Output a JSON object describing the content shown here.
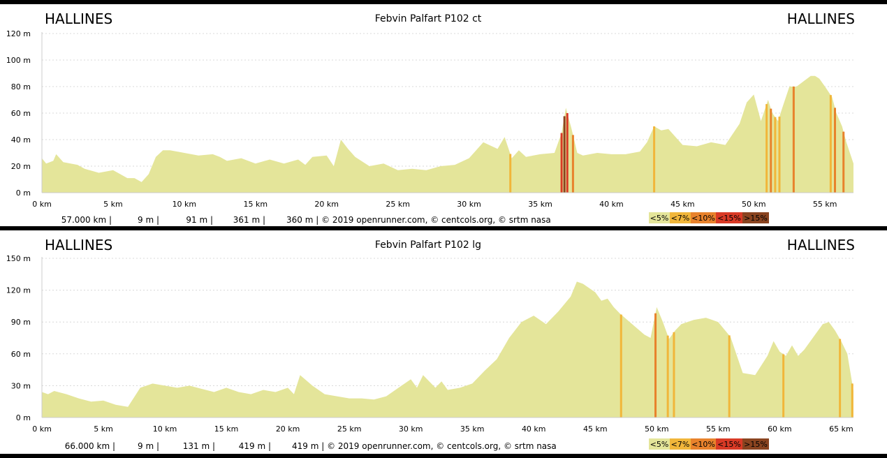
{
  "colors": {
    "fill": "#e4e59a",
    "grid": "#d8d8d8",
    "slope": [
      "#e4e59a",
      "#f1b63a",
      "#e8822c",
      "#d93a26",
      "#8a4420"
    ]
  },
  "chart_data": [
    {
      "type": "area",
      "title": "Febvin Palfart P102 ct",
      "start_label": "HALLINES",
      "end_label": "HALLINES",
      "xlim": [
        0,
        57
      ],
      "ylim": [
        0,
        120
      ],
      "x_ticks": [
        0,
        5,
        10,
        15,
        20,
        25,
        30,
        35,
        40,
        45,
        50,
        55
      ],
      "x_tick_labels": [
        "0 km",
        "5 km",
        "10 km",
        "15 km",
        "20 km",
        "25 km",
        "30 km",
        "35 km",
        "40 km",
        "45 km",
        "50 km",
        "55 km"
      ],
      "y_ticks": [
        0,
        20,
        40,
        60,
        80,
        100,
        120
      ],
      "y_tick_labels": [
        "0 m",
        "20 m",
        "40 m",
        "60 m",
        "80 m",
        "100 m",
        "120 m"
      ],
      "grid": true,
      "x": [
        0,
        0.3,
        0.8,
        1.0,
        1.5,
        2.5,
        3.0,
        4.0,
        5.0,
        5.5,
        6.0,
        6.5,
        7.0,
        7.5,
        8.0,
        8.5,
        9.0,
        9.5,
        10.0,
        11.0,
        12.0,
        12.5,
        13.0,
        14.0,
        15.0,
        16.0,
        17.0,
        18.0,
        18.5,
        19.0,
        20.0,
        20.5,
        21.0,
        21.5,
        22.0,
        23.0,
        24.0,
        25.0,
        26.0,
        27.0,
        28.0,
        29.0,
        30.0,
        31.0,
        32.0,
        32.5,
        33.0,
        33.5,
        34.0,
        35.0,
        36.0,
        36.5,
        36.8,
        37.2,
        37.6,
        38.0,
        39.0,
        40.0,
        41.0,
        42.0,
        42.5,
        43.0,
        43.5,
        44.0,
        45.0,
        46.0,
        47.0,
        48.0,
        49.0,
        49.5,
        50.0,
        50.5,
        51.0,
        51.3,
        51.7,
        52.0,
        52.5,
        53.0,
        53.5,
        54.0,
        54.3,
        54.6,
        55.0,
        55.5,
        55.8,
        56.2,
        56.5,
        57.0
      ],
      "elevation": [
        26,
        22,
        24,
        29,
        23,
        21,
        18,
        15,
        17,
        14,
        11,
        11,
        8,
        14,
        27,
        32,
        32,
        31,
        30,
        28,
        29,
        27,
        24,
        26,
        22,
        25,
        22,
        25,
        21,
        27,
        28,
        20,
        40,
        33,
        27,
        20,
        22,
        17,
        18,
        17,
        20,
        21,
        26,
        38,
        33,
        42,
        26,
        32,
        27,
        29,
        30,
        45,
        64,
        48,
        30,
        28,
        30,
        29,
        29,
        31,
        38,
        50,
        47,
        48,
        36,
        35,
        38,
        36,
        52,
        68,
        74,
        54,
        70,
        60,
        54,
        64,
        80,
        80,
        84,
        88,
        88,
        86,
        80,
        72,
        60,
        50,
        38,
        22
      ],
      "steep_sections": [
        {
          "x": 32.9,
          "level": 1
        },
        {
          "x": 36.5,
          "level": 3
        },
        {
          "x": 36.7,
          "level": 4
        },
        {
          "x": 36.9,
          "level": 3
        },
        {
          "x": 37.3,
          "level": 2
        },
        {
          "x": 43.0,
          "level": 1
        },
        {
          "x": 50.9,
          "level": 1
        },
        {
          "x": 51.2,
          "level": 2
        },
        {
          "x": 51.5,
          "level": 1
        },
        {
          "x": 51.8,
          "level": 1
        },
        {
          "x": 52.8,
          "level": 2
        },
        {
          "x": 55.4,
          "level": 1
        },
        {
          "x": 55.7,
          "level": 2
        },
        {
          "x": 56.3,
          "level": 2
        }
      ],
      "footer": {
        "distance": "57.000 km |",
        "min_alt": "9 m |",
        "max_alt": "91 m |",
        "ascent": "361 m |",
        "descent_copyright": "360 m | © 2019 openrunner.com, © centcols.org, © srtm nasa"
      },
      "legend": [
        "<5%",
        "<7%",
        "<10%",
        "<15%",
        ">15%"
      ]
    },
    {
      "type": "area",
      "title": "Febvin Palfart P102 lg",
      "start_label": "HALLINES",
      "end_label": "HALLINES",
      "xlim": [
        0,
        66
      ],
      "ylim": [
        0,
        150
      ],
      "x_ticks": [
        0,
        5,
        10,
        15,
        20,
        25,
        30,
        35,
        40,
        45,
        50,
        55,
        60,
        65
      ],
      "x_tick_labels": [
        "0 km",
        "5 km",
        "10 km",
        "15 km",
        "20 km",
        "25 km",
        "30 km",
        "35 km",
        "40 km",
        "45 km",
        "50 km",
        "55 km",
        "60 km",
        "65 km"
      ],
      "y_ticks": [
        0,
        30,
        60,
        90,
        120,
        150
      ],
      "y_tick_labels": [
        "0 m",
        "30 m",
        "60 m",
        "90 m",
        "120 m",
        "150 m"
      ],
      "grid": true,
      "x": [
        0,
        0.5,
        1.0,
        2.0,
        3.0,
        4.0,
        5.0,
        6.0,
        7.0,
        8.0,
        9.0,
        10.0,
        11.0,
        12.0,
        13.0,
        14.0,
        15.0,
        16.0,
        17.0,
        18.0,
        19.0,
        20.0,
        20.5,
        21.0,
        22.0,
        23.0,
        24.0,
        25.0,
        26.0,
        27.0,
        28.0,
        29.0,
        30.0,
        30.5,
        31.0,
        32.0,
        32.5,
        33.0,
        34.0,
        35.0,
        36.0,
        37.0,
        38.0,
        39.0,
        40.0,
        41.0,
        42.0,
        43.0,
        43.5,
        44.0,
        45.0,
        45.5,
        46.0,
        46.5,
        47.0,
        48.0,
        49.0,
        49.5,
        50.0,
        50.5,
        51.0,
        51.5,
        52.0,
        53.0,
        54.0,
        55.0,
        56.0,
        57.0,
        58.0,
        59.0,
        59.5,
        60.0,
        60.5,
        61.0,
        61.5,
        62.0,
        63.0,
        63.5,
        64.0,
        64.5,
        65.0,
        65.5,
        66.0
      ],
      "elevation": [
        24,
        22,
        25,
        22,
        18,
        15,
        16,
        12,
        10,
        28,
        32,
        30,
        28,
        30,
        27,
        24,
        28,
        24,
        22,
        26,
        24,
        28,
        22,
        40,
        30,
        22,
        20,
        18,
        18,
        17,
        20,
        28,
        36,
        28,
        40,
        28,
        34,
        26,
        28,
        32,
        44,
        55,
        75,
        90,
        96,
        88,
        100,
        114,
        128,
        126,
        118,
        110,
        112,
        104,
        98,
        88,
        78,
        75,
        104,
        90,
        74,
        82,
        88,
        92,
        94,
        90,
        76,
        42,
        40,
        58,
        72,
        62,
        58,
        68,
        58,
        64,
        80,
        88,
        90,
        82,
        72,
        60,
        25
      ],
      "steep_sections": [
        {
          "x": 47.1,
          "level": 1
        },
        {
          "x": 49.9,
          "level": 2
        },
        {
          "x": 50.9,
          "level": 1
        },
        {
          "x": 51.4,
          "level": 1
        },
        {
          "x": 55.9,
          "level": 1
        },
        {
          "x": 60.3,
          "level": 1
        },
        {
          "x": 64.9,
          "level": 1
        },
        {
          "x": 65.9,
          "level": 1
        }
      ],
      "footer": {
        "distance": "66.000 km |",
        "min_alt": "9 m |",
        "max_alt": "131 m |",
        "ascent": "419 m |",
        "descent_copyright": "419 m | © 2019 openrunner.com, © centcols.org, © srtm nasa"
      },
      "legend": [
        "<5%",
        "<7%",
        "<10%",
        "<15%",
        ">15%"
      ]
    }
  ]
}
